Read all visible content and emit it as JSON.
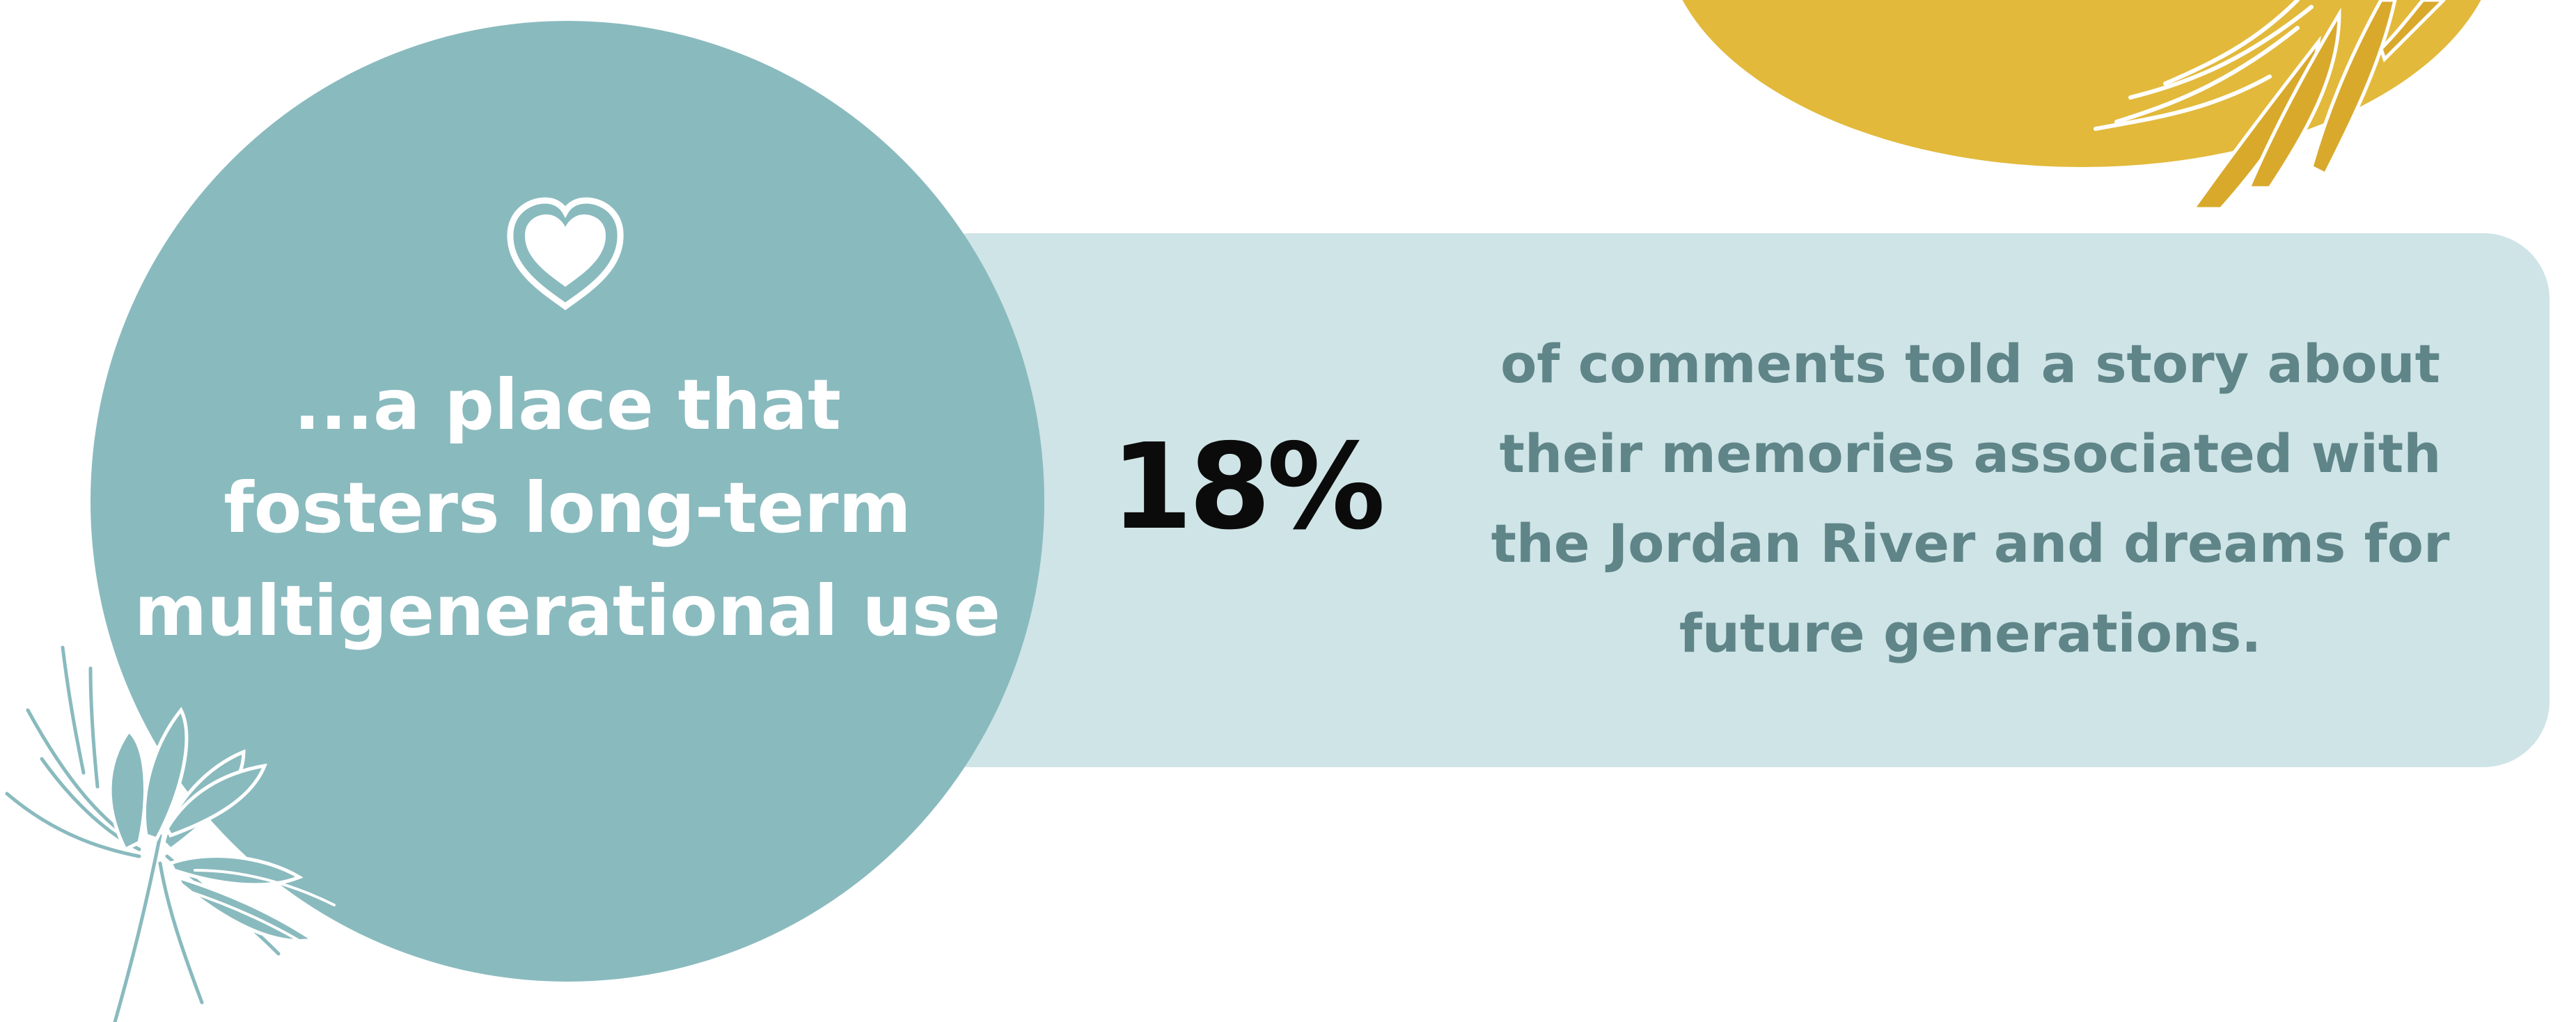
{
  "colors": {
    "teal": "#89babe",
    "light_teal": "#cfe4e6",
    "yellow": "#e2b93b",
    "number": "#0b0b0b",
    "desc_text": "#5f8589",
    "white": "#ffffff"
  },
  "icons": {
    "heart": "heart-icon",
    "flower": "flower-illustration",
    "sun": "sun-illustration"
  },
  "circle": {
    "lines": [
      "...a place that",
      "fosters long-term",
      "multigenerational use"
    ]
  },
  "stat": {
    "value": "18%",
    "description_lines": [
      "of comments told a story about",
      "their memories associated with",
      "the Jordan River and dreams for",
      "future generations."
    ]
  }
}
